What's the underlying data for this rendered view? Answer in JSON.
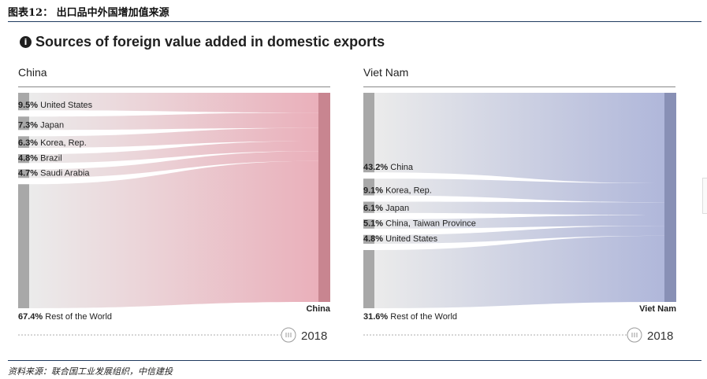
{
  "header": {
    "label": "图表12：  出口品中外国增加值来源"
  },
  "title": "Sources of foreign value added in domestic exports",
  "footer": {
    "source": "资料来源：联合国工业发展组织，中信建投"
  },
  "chart_data": [
    {
      "type": "sankey",
      "panel_title": "China",
      "target": "China",
      "year": "2018",
      "unit": "%",
      "color": "#e8a7b3",
      "target_color": "#c88590",
      "sources": [
        {
          "name": "United States",
          "value": 9.5,
          "label": "9.5%"
        },
        {
          "name": "Japan",
          "value": 7.3,
          "label": "7.3%"
        },
        {
          "name": "Korea, Rep.",
          "value": 6.3,
          "label": "6.3%"
        },
        {
          "name": "Brazil",
          "value": 4.8,
          "label": "4.8%"
        },
        {
          "name": "Saudi Arabia",
          "value": 4.7,
          "label": "4.7%"
        },
        {
          "name": "Rest of the World",
          "value": 67.4,
          "label": "67.4%"
        }
      ]
    },
    {
      "type": "sankey",
      "panel_title": "Viet Nam",
      "target": "Viet Nam",
      "year": "2018",
      "unit": "%",
      "color": "#a7afd6",
      "target_color": "#8890b5",
      "sources": [
        {
          "name": "China",
          "value": 43.2,
          "label": "43.2%"
        },
        {
          "name": "Korea, Rep.",
          "value": 9.1,
          "label": "9.1%"
        },
        {
          "name": "Japan",
          "value": 6.1,
          "label": "6.1%"
        },
        {
          "name": "China, Taiwan Province",
          "value": 5.1,
          "label": "5.1%"
        },
        {
          "name": "United States",
          "value": 4.8,
          "label": "4.8%"
        },
        {
          "name": "Rest of the World",
          "value": 31.6,
          "label": "31.6%"
        }
      ]
    }
  ]
}
